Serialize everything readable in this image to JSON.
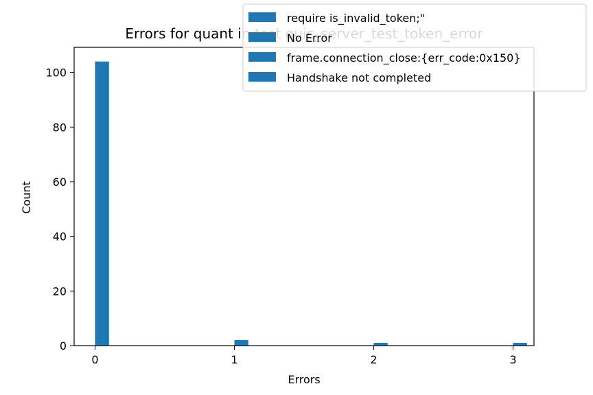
{
  "chart_data": {
    "type": "bar",
    "title": "Errors for quant in test quic_server_test_token_error",
    "xlabel": "Errors",
    "ylabel": "Count",
    "categories": [
      "0",
      "1",
      "2",
      "3"
    ],
    "x": [
      0,
      1,
      2,
      3
    ],
    "values": [
      104,
      2,
      1,
      1
    ],
    "legend": [
      "require is_invalid_token;\"",
      "No Error",
      "frame.connection_close:{err_code:0x150}",
      "Handshake not completed"
    ],
    "legend_placement": "top-right",
    "xticks": [
      "0",
      "1",
      "2",
      "3"
    ],
    "yticks": [
      "0",
      "20",
      "40",
      "60",
      "80",
      "100"
    ],
    "xlim": [
      -0.15,
      3.15
    ],
    "ylim": [
      0,
      109.2
    ],
    "grid": false,
    "bar_color": "#1f77b4"
  }
}
